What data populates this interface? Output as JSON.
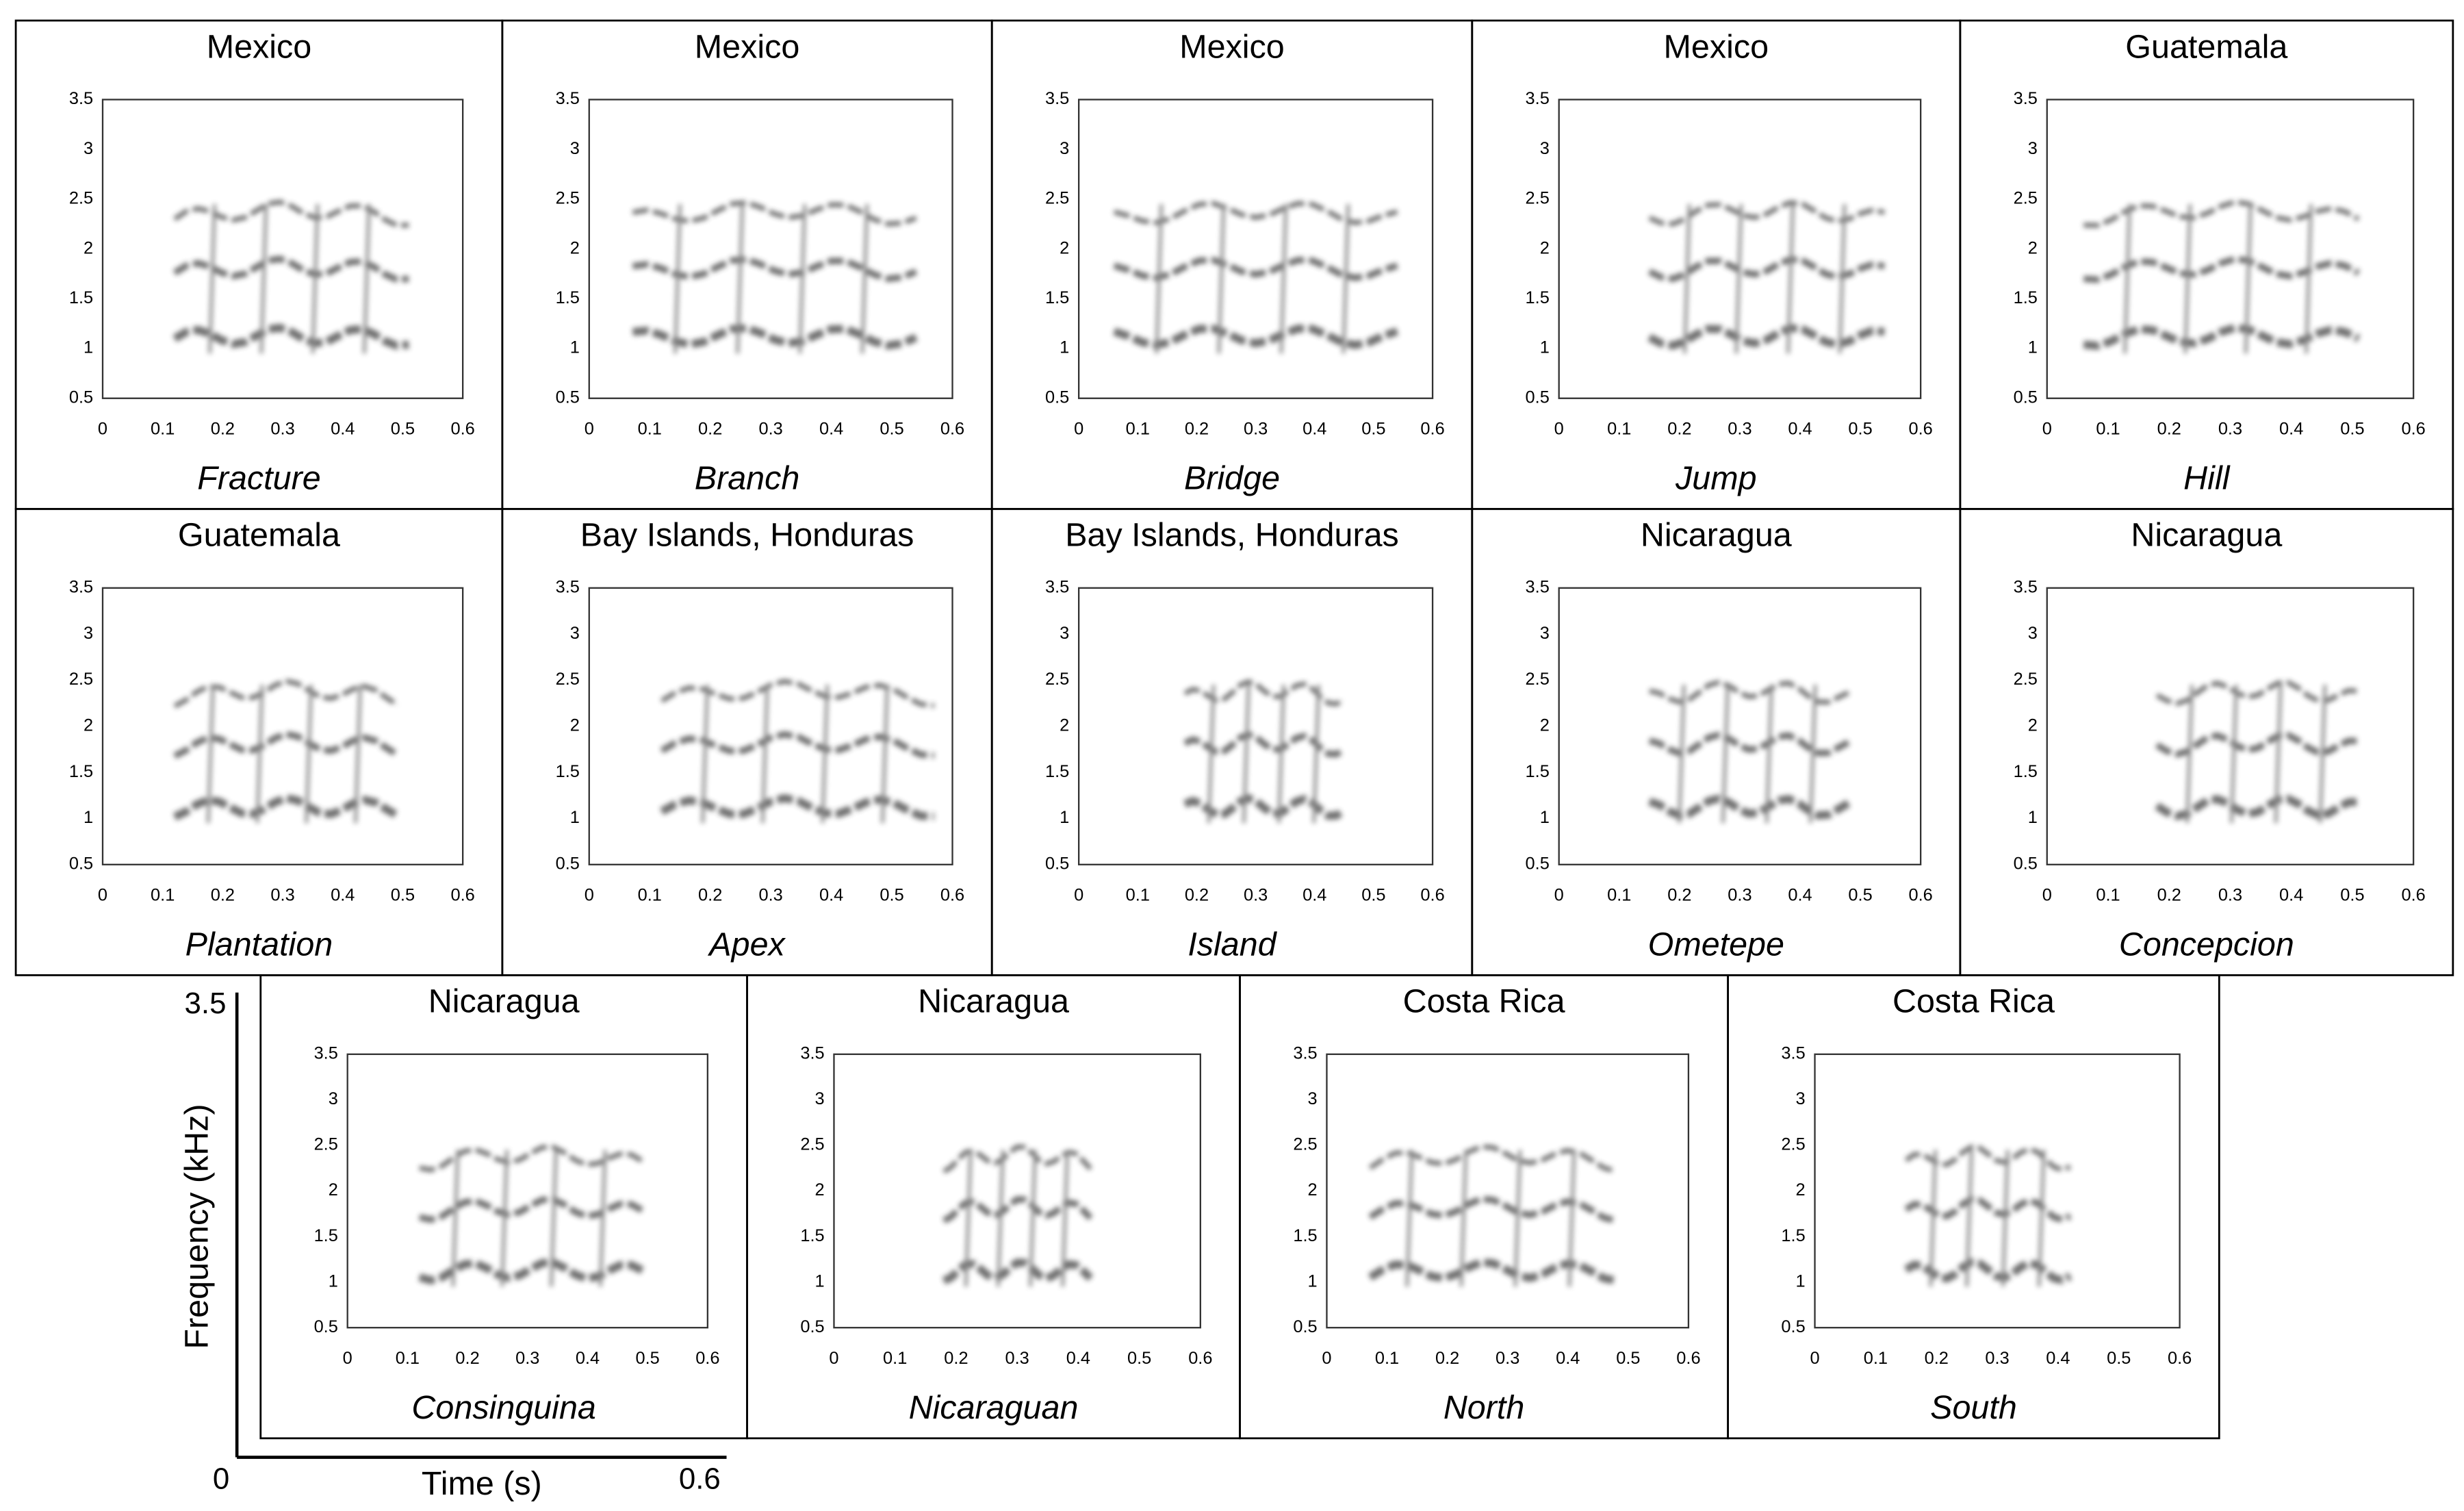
{
  "panels": [
    {
      "region": "Mexico",
      "name": "Fracture"
    },
    {
      "region": "Mexico",
      "name": "Branch"
    },
    {
      "region": "Mexico",
      "name": "Bridge"
    },
    {
      "region": "Mexico",
      "name": "Jump"
    },
    {
      "region": "Guatemala",
      "name": "Hill"
    },
    {
      "region": "Guatemala",
      "name": "Plantation"
    },
    {
      "region": "Bay Islands, Honduras",
      "name": "Apex"
    },
    {
      "region": "Bay Islands, Honduras",
      "name": "Island"
    },
    {
      "region": "Nicaragua",
      "name": "Ometepe"
    },
    {
      "region": "Nicaragua",
      "name": "Concepcion"
    },
    {
      "region": "Nicaragua",
      "name": "Consinguina"
    },
    {
      "region": "Nicaragua",
      "name": "Nicaraguan"
    },
    {
      "region": "Costa Rica",
      "name": "North"
    },
    {
      "region": "Costa Rica",
      "name": "South"
    }
  ],
  "axis": {
    "xticks": [
      0,
      0.1,
      0.2,
      0.3,
      0.4,
      0.5,
      0.6
    ],
    "yticks": [
      0.5,
      1,
      1.5,
      2,
      2.5,
      3,
      3.5
    ]
  },
  "key": {
    "y_label": "Frequency (kHz)",
    "x_label": "Time (s)",
    "y_max": 3.5,
    "x_min": 0,
    "x_max": 0.6
  }
}
